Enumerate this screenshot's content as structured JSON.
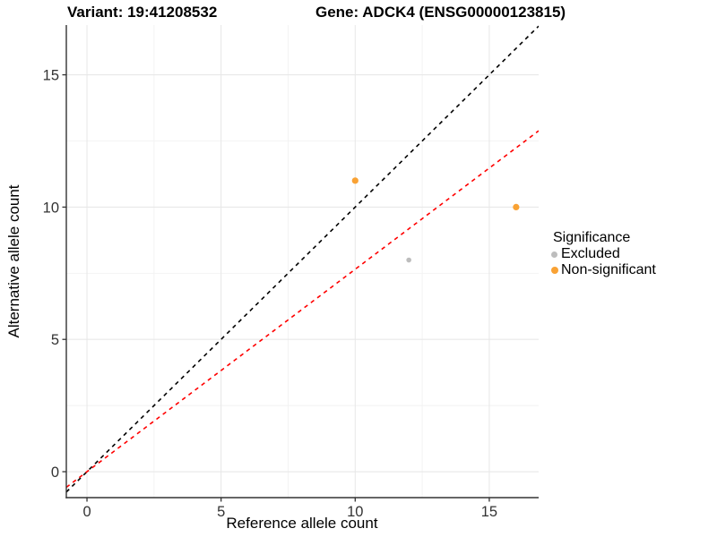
{
  "titles": {
    "left": "Variant: 19:41208532",
    "right": "Gene: ADCK4 (ENSG00000123815)"
  },
  "chart_data": {
    "type": "scatter",
    "title": "Variant: 19:41208532   Gene: ADCK4 (ENSG00000123815)",
    "xlabel": "Reference allele count",
    "ylabel": "Alternative allele count",
    "xlim": [
      -0.77,
      16.84
    ],
    "ylim": [
      -0.98,
      16.88
    ],
    "x_major_ticks": [
      0,
      5,
      10,
      15
    ],
    "y_major_ticks": [
      0,
      5,
      10,
      15
    ],
    "x_minor_ticks": [
      2.5,
      7.5,
      12.5
    ],
    "y_minor_ticks": [
      2.5,
      7.5,
      12.5
    ],
    "grid": true,
    "legend_position": "right",
    "series": [
      {
        "name": "Excluded",
        "color": "#BDBDBD",
        "point_radius": 2.8,
        "points": [
          {
            "x": 12,
            "y": 8
          }
        ]
      },
      {
        "name": "Non-significant",
        "color": "#F9A234",
        "point_radius": 3.6,
        "points": [
          {
            "x": 10,
            "y": 11
          },
          {
            "x": 16,
            "y": 10
          }
        ]
      }
    ],
    "reference_lines": [
      {
        "name": "identity-line",
        "slope": 1.0,
        "intercept": 0,
        "color": "#000000",
        "style": "dashed"
      },
      {
        "name": "expected-ratio-line",
        "slope": 0.765,
        "intercept": 0,
        "color": "#FF0000",
        "style": "dashed"
      }
    ]
  },
  "legend": {
    "title": "Significance",
    "items": [
      {
        "label": "Excluded",
        "color": "#BDBDBD"
      },
      {
        "label": "Non-significant",
        "color": "#F9A234"
      }
    ]
  },
  "colors": {
    "axis_line": "#333333",
    "tick_label": "#333333",
    "grid_major": "#E8E8E8",
    "grid_minor": "#F2F2F2"
  }
}
